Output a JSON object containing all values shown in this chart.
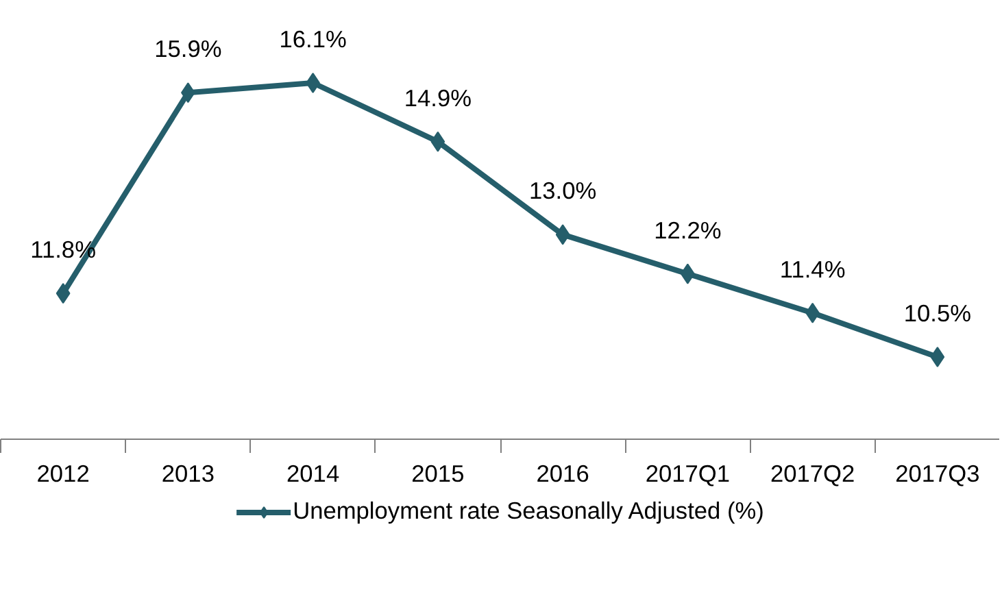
{
  "chart_data": {
    "type": "line",
    "categories": [
      "2012",
      "2013",
      "2014",
      "2015",
      "2016",
      "2017Q1",
      "2017Q2",
      "2017Q3"
    ],
    "series": [
      {
        "name": "Unemployment rate Seasonally Adjusted (%)",
        "color": "#255e6b",
        "values": [
          11.8,
          15.9,
          16.1,
          14.9,
          13.0,
          12.2,
          11.4,
          10.5
        ],
        "value_labels": [
          "11.8%",
          "15.9%",
          "16.1%",
          "14.9%",
          "13.0%",
          "12.2%",
          "11.4%",
          "10.5%"
        ]
      }
    ],
    "tick_labels": "x",
    "marker": "diamond",
    "line_style": "solid",
    "legend": "bottom"
  }
}
